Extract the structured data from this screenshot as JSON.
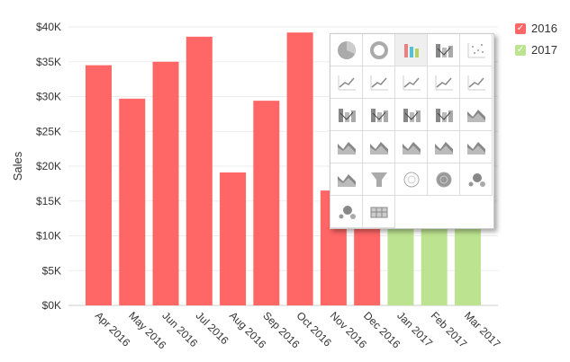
{
  "chart_data": {
    "type": "bar",
    "ylabel": "Sales",
    "ylim": [
      0,
      40000
    ],
    "yticks": [
      "$0K",
      "$5K",
      "$10K",
      "$15K",
      "$20K",
      "$25K",
      "$30K",
      "$35K",
      "$40K"
    ],
    "categories": [
      "Apr 2016",
      "May 2016",
      "Jun 2016",
      "Jul 2016",
      "Aug 2016",
      "Sep 2016",
      "Oct 2016",
      "Nov 2016",
      "Dec 2016",
      "Jan 2017",
      "Feb 2017",
      "Mar 2017"
    ],
    "series": [
      {
        "name": "2016",
        "color": "#ff6666",
        "values": [
          34500,
          29700,
          35000,
          38600,
          19100,
          29400,
          39200,
          16500,
          20000,
          null,
          null,
          null
        ]
      },
      {
        "name": "2017",
        "color": "#bce38f",
        "values": [
          null,
          null,
          null,
          null,
          null,
          null,
          null,
          null,
          null,
          13000,
          14000,
          11000
        ]
      }
    ],
    "legend_position": "top-right",
    "grid": true
  },
  "legend": [
    {
      "label": "2016",
      "color": "#ff6666"
    },
    {
      "label": "2017",
      "color": "#bce38f"
    }
  ],
  "chart_type_picker": [
    "pie",
    "donut",
    "bar",
    "stacked-bar",
    "scatter",
    "step-line",
    "line",
    "line-markers",
    "spline",
    "spline-markers",
    "bar-line",
    "bar-spline",
    "stacked-bar-line",
    "stacked-bar-spline",
    "area",
    "area-2",
    "area-3",
    "area-4",
    "area-markers",
    "stacked-area",
    "stacked-area-markers",
    "funnel",
    "web",
    "web-filled",
    "bubble",
    "packed-bubble",
    "table"
  ]
}
